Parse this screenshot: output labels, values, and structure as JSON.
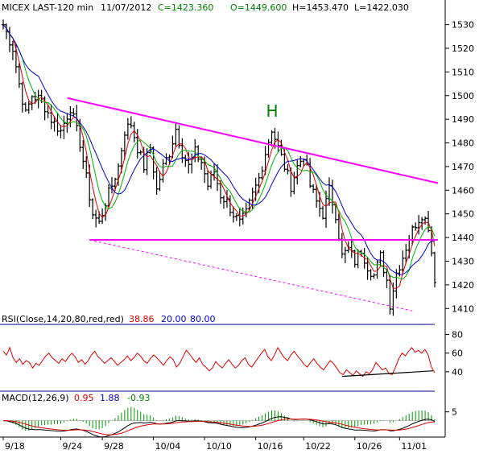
{
  "header": {
    "instrument": "MICEX LAST-120 min",
    "date": "11/07/2012",
    "close": "C=1423.360",
    "open": "O=1449.600",
    "high": "H=1453.470",
    "low": "L=1422.030"
  },
  "colors": {
    "price": "#000000",
    "ma_red": "#e00000",
    "ma_green": "#00b000",
    "ma_blue": "#0000cc",
    "trendline": "#ff00ff",
    "rsi": "#e00000",
    "macd_hist": "#009900",
    "label_H": "#008000",
    "grid": "#bbbbbb"
  },
  "annotations": {
    "head_label": "H"
  },
  "chart_data": [
    {
      "type": "candlestick",
      "panel": "price",
      "title": "MICEX LAST-120 min",
      "ylim": [
        1405,
        1537
      ],
      "yticks": [
        1410,
        1420,
        1430,
        1440,
        1450,
        1460,
        1470,
        1480,
        1490,
        1500,
        1510,
        1520,
        1530
      ],
      "xlabels": [
        "9/18",
        "9/24",
        "9/28",
        "10/04",
        "10/10",
        "10/16",
        "10/22",
        "10/26",
        "11/01"
      ],
      "grid": false,
      "close_path": [
        [
          0,
          1530
        ],
        [
          3,
          1520
        ],
        [
          5,
          1505
        ],
        [
          7,
          1492
        ],
        [
          9,
          1500
        ],
        [
          12,
          1498
        ],
        [
          15,
          1490
        ],
        [
          18,
          1485
        ],
        [
          21,
          1495
        ],
        [
          24,
          1480
        ],
        [
          26,
          1465
        ],
        [
          28,
          1450
        ],
        [
          30,
          1446
        ],
        [
          32,
          1455
        ],
        [
          34,
          1462
        ],
        [
          36,
          1470
        ],
        [
          38,
          1485
        ],
        [
          40,
          1488
        ],
        [
          42,
          1478
        ],
        [
          44,
          1470
        ],
        [
          46,
          1478
        ],
        [
          48,
          1460
        ],
        [
          50,
          1470
        ],
        [
          52,
          1476
        ],
        [
          54,
          1486
        ],
        [
          56,
          1476
        ],
        [
          58,
          1470
        ],
        [
          60,
          1476
        ],
        [
          62,
          1472
        ],
        [
          64,
          1462
        ],
        [
          66,
          1468
        ],
        [
          68,
          1458
        ],
        [
          70,
          1455
        ],
        [
          72,
          1450
        ],
        [
          74,
          1446
        ],
        [
          76,
          1450
        ],
        [
          78,
          1458
        ],
        [
          80,
          1465
        ],
        [
          82,
          1476
        ],
        [
          84,
          1486
        ],
        [
          86,
          1478
        ],
        [
          88,
          1470
        ],
        [
          90,
          1462
        ],
        [
          92,
          1470
        ],
        [
          94,
          1475
        ],
        [
          96,
          1462
        ],
        [
          98,
          1455
        ],
        [
          100,
          1450
        ],
        [
          102,
          1460
        ],
        [
          104,
          1450
        ],
        [
          106,
          1432
        ],
        [
          108,
          1435
        ],
        [
          110,
          1430
        ],
        [
          112,
          1435
        ],
        [
          114,
          1428
        ],
        [
          116,
          1424
        ],
        [
          118,
          1432
        ],
        [
          120,
          1422
        ],
        [
          121,
          1412
        ],
        [
          123,
          1425
        ],
        [
          125,
          1432
        ],
        [
          127,
          1440
        ],
        [
          129,
          1446
        ],
        [
          131,
          1450
        ],
        [
          133,
          1445
        ],
        [
          135,
          1423
        ]
      ],
      "series": [
        {
          "name": "",
          "color": "red",
          "role": "fast MA"
        },
        {
          "name": "",
          "color": "green",
          "role": "medium MA"
        },
        {
          "name": "",
          "color": "blue",
          "role": "slow MA"
        }
      ],
      "trendlines": [
        {
          "from": [
            20,
            1499
          ],
          "to": [
            136,
            1463
          ],
          "style": "solid"
        },
        {
          "from": [
            27,
            1439
          ],
          "to": [
            136,
            1439
          ],
          "style": "solid"
        },
        {
          "from": [
            27,
            1439
          ],
          "to": [
            128,
            1409
          ],
          "style": "dashed"
        }
      ],
      "annotation": {
        "text": "H",
        "at": [
          84,
          1491
        ]
      }
    },
    {
      "type": "line",
      "panel": "rsi",
      "title": "RSI(Close,14,20,80,red,red)",
      "values_text": [
        "38.86",
        "20.00",
        "80.00"
      ],
      "ylim": [
        20,
        90
      ],
      "yticks": [
        40,
        60,
        80
      ],
      "reference_lines": [
        20,
        80
      ],
      "series": [
        {
          "name": "RSI",
          "values": [
            62,
            58,
            66,
            55,
            50,
            54,
            48,
            52,
            50,
            44,
            49,
            47,
            52,
            57,
            60,
            55,
            52,
            49,
            54,
            51,
            56,
            60,
            56,
            50,
            53,
            48,
            52,
            58,
            62,
            56,
            53,
            49,
            52,
            55,
            51,
            47,
            50,
            53,
            57,
            52,
            55,
            60,
            57,
            52,
            49,
            54,
            58,
            55,
            51,
            47,
            52,
            56,
            53,
            45,
            49,
            56,
            63,
            59,
            54,
            50,
            55,
            48,
            45,
            41,
            44,
            51,
            47,
            44,
            49,
            53,
            48,
            44,
            47,
            52,
            55,
            48,
            45,
            50,
            55,
            60,
            64,
            56,
            52,
            58,
            66,
            60,
            55,
            52,
            58,
            62,
            57,
            53,
            48,
            45,
            50,
            54,
            49,
            45,
            42,
            47,
            52,
            49,
            44,
            39,
            37,
            42,
            39,
            36,
            41,
            38,
            35,
            40,
            38,
            42,
            50,
            46,
            42,
            44,
            38,
            37,
            45,
            54,
            60,
            57,
            62,
            66,
            61,
            63,
            60,
            64,
            58,
            45,
            39
          ]
        }
      ],
      "trendline": {
        "from": [
          0.8,
          35
        ],
        "to": [
          1.0,
          41
        ],
        "color": "black"
      }
    },
    {
      "type": "line",
      "panel": "macd",
      "title": "MACD(12,26,9)",
      "values_text": [
        "0.95",
        "1.88",
        "-0.93"
      ],
      "yticks": [
        5
      ],
      "ylim": [
        -8,
        9
      ],
      "series": [
        {
          "name": "MACD",
          "color": "black"
        },
        {
          "name": "signal",
          "color": "red"
        }
      ]
    }
  ]
}
